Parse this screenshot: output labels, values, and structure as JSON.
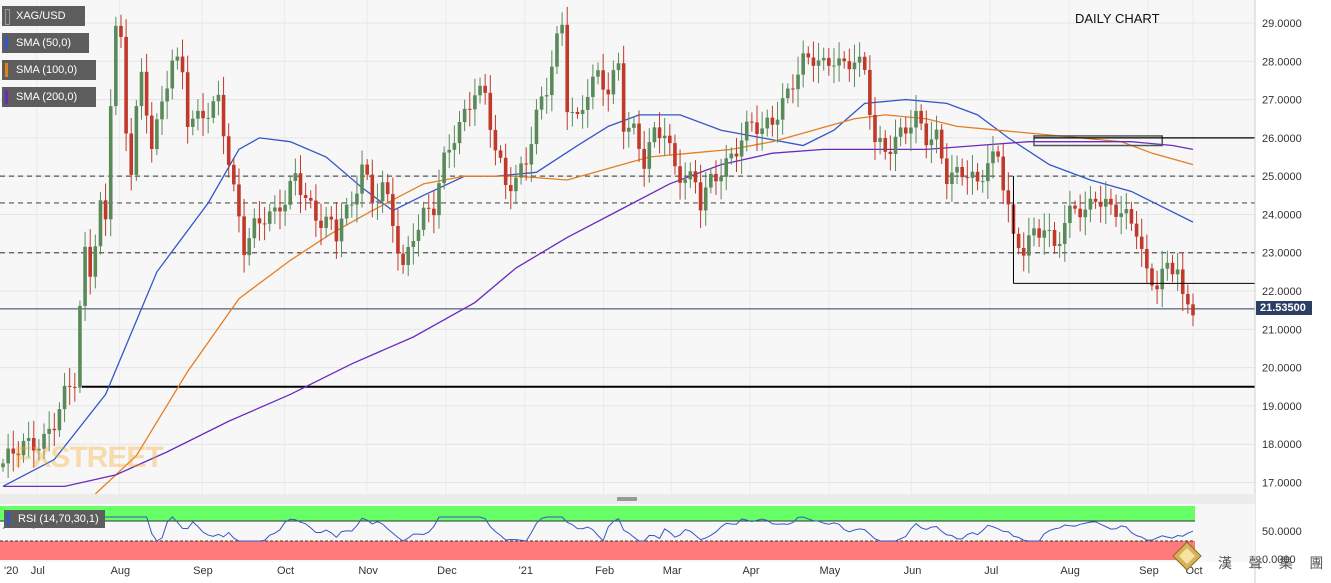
{
  "header": {
    "chart_title": "DAILY CHART",
    "legend": [
      {
        "label": "XAG/USD",
        "color": "#5d5d5d"
      },
      {
        "label": "SMA (50,0)",
        "color": "#3556c7"
      },
      {
        "label": "SMA (100,0)",
        "color": "#e67e22"
      },
      {
        "label": "SMA (200,0)",
        "color": "#6a2bbf"
      }
    ],
    "last_price_label": "21.53500"
  },
  "watermark": "FXSTREET",
  "brand_text": "漢 聲 集 團",
  "rsi": {
    "label": "RSI (14,70,30,1)",
    "overbought_color": "#66ff66",
    "oversold_color": "#ff7b7b",
    "ticks": [
      "50.0000",
      "0.0000"
    ]
  },
  "chart_data": {
    "type": "candlestick",
    "title": "DAILY CHART",
    "symbol": "XAG/USD",
    "ylim": [
      16.7,
      29.6
    ],
    "yticks": [
      17,
      18,
      19,
      20,
      21,
      22,
      23,
      24,
      25,
      26,
      27,
      28,
      29
    ],
    "ytick_labels": [
      "17.0000",
      "18.0000",
      "19.0000",
      "20.0000",
      "21.0000",
      "22.0000",
      "23.0000",
      "24.0000",
      "25.0000",
      "26.0000",
      "27.0000",
      "28.0000",
      "29.0000"
    ],
    "x_axis_labels": [
      "'20",
      "Jul",
      "Aug",
      "Sep",
      "Oct",
      "Nov",
      "Dec",
      "'21",
      "Feb",
      "Mar",
      "Apr",
      "May",
      "Jun",
      "Jul",
      "Aug",
      "Sep",
      "Oct"
    ],
    "close_path": [
      [
        0,
        17.5
      ],
      [
        4,
        17.9
      ],
      [
        8,
        18.2
      ],
      [
        10,
        18.6
      ],
      [
        12,
        19.2
      ],
      [
        14,
        19.6
      ],
      [
        15,
        21.5
      ],
      [
        16,
        23.0
      ],
      [
        17,
        22.6
      ],
      [
        19,
        24.3
      ],
      [
        20,
        23.8
      ],
      [
        21,
        27.0
      ],
      [
        22,
        28.9
      ],
      [
        23,
        28.3
      ],
      [
        24,
        26.0
      ],
      [
        25,
        25.2
      ],
      [
        26,
        26.8
      ],
      [
        27,
        27.6
      ],
      [
        29,
        26.0
      ],
      [
        31,
        26.8
      ],
      [
        33,
        28.0
      ],
      [
        35,
        27.6
      ],
      [
        36,
        26.5
      ],
      [
        38,
        26.6
      ],
      [
        40,
        26.8
      ],
      [
        42,
        26.9
      ],
      [
        45,
        24.5
      ],
      [
        47,
        23.2
      ],
      [
        49,
        23.8
      ],
      [
        51,
        24.0
      ],
      [
        53,
        23.9
      ],
      [
        55,
        24.3
      ],
      [
        57,
        25.0
      ],
      [
        59,
        24.6
      ],
      [
        61,
        23.9
      ],
      [
        63,
        23.8
      ],
      [
        65,
        23.3
      ],
      [
        66,
        24.0
      ],
      [
        68,
        24.2
      ],
      [
        70,
        25.5
      ],
      [
        72,
        24.3
      ],
      [
        74,
        24.7
      ],
      [
        76,
        23.7
      ],
      [
        78,
        22.6
      ],
      [
        80,
        23.6
      ],
      [
        82,
        24.0
      ],
      [
        84,
        24.1
      ],
      [
        86,
        25.3
      ],
      [
        88,
        26.1
      ],
      [
        90,
        26.7
      ],
      [
        92,
        27.3
      ],
      [
        94,
        27.0
      ],
      [
        96,
        25.6
      ],
      [
        98,
        24.8
      ],
      [
        100,
        25.0
      ],
      [
        102,
        25.5
      ],
      [
        104,
        26.5
      ],
      [
        106,
        27.2
      ],
      [
        108,
        28.5
      ],
      [
        109,
        29.0
      ],
      [
        110,
        27.0
      ],
      [
        112,
        26.5
      ],
      [
        114,
        27.2
      ],
      [
        116,
        27.5
      ],
      [
        118,
        27.2
      ],
      [
        120,
        28.0
      ],
      [
        121,
        26.5
      ],
      [
        123,
        26.2
      ],
      [
        125,
        25.3
      ],
      [
        127,
        26.0
      ],
      [
        129,
        26.2
      ],
      [
        131,
        25.3
      ],
      [
        133,
        25.0
      ],
      [
        135,
        24.8
      ],
      [
        136,
        24.2
      ],
      [
        138,
        24.8
      ],
      [
        140,
        25.2
      ],
      [
        142,
        25.6
      ],
      [
        144,
        26.0
      ],
      [
        146,
        26.3
      ],
      [
        148,
        26.1
      ],
      [
        150,
        26.5
      ],
      [
        152,
        27.0
      ],
      [
        154,
        27.5
      ],
      [
        156,
        27.9
      ],
      [
        158,
        28.0
      ],
      [
        160,
        27.9
      ],
      [
        162,
        28.2
      ],
      [
        164,
        27.9
      ],
      [
        166,
        28.0
      ],
      [
        168,
        27.6
      ],
      [
        170,
        25.9
      ],
      [
        172,
        25.8
      ],
      [
        174,
        26.0
      ],
      [
        176,
        26.2
      ],
      [
        178,
        26.4
      ],
      [
        180,
        26.0
      ],
      [
        182,
        26.1
      ],
      [
        184,
        25.1
      ],
      [
        186,
        25.0
      ],
      [
        188,
        25.0
      ],
      [
        190,
        24.7
      ],
      [
        192,
        25.5
      ],
      [
        194,
        25.6
      ],
      [
        196,
        24.2
      ],
      [
        197,
        23.2
      ],
      [
        199,
        23.0
      ],
      [
        201,
        23.5
      ],
      [
        203,
        23.8
      ],
      [
        205,
        23.2
      ],
      [
        207,
        23.7
      ],
      [
        209,
        24.1
      ],
      [
        211,
        24.0
      ],
      [
        213,
        24.6
      ],
      [
        215,
        24.3
      ],
      [
        217,
        24.1
      ],
      [
        219,
        23.8
      ],
      [
        221,
        23.6
      ],
      [
        223,
        22.5
      ],
      [
        225,
        22.3
      ],
      [
        227,
        22.6
      ],
      [
        229,
        22.5
      ],
      [
        230,
        21.6
      ]
    ],
    "series": [
      {
        "name": "SMA (50,0)",
        "color": "#3556c7",
        "values": [
          [
            0,
            16.9
          ],
          [
            10,
            17.6
          ],
          [
            20,
            19.3
          ],
          [
            30,
            22.5
          ],
          [
            40,
            24.3
          ],
          [
            46,
            25.7
          ],
          [
            50,
            26.0
          ],
          [
            56,
            25.9
          ],
          [
            63,
            25.5
          ],
          [
            70,
            24.7
          ],
          [
            76,
            24.1
          ],
          [
            82,
            24.5
          ],
          [
            90,
            25.0
          ],
          [
            96,
            25.0
          ],
          [
            104,
            25.1
          ],
          [
            112,
            25.8
          ],
          [
            118,
            26.3
          ],
          [
            124,
            26.6
          ],
          [
            132,
            26.6
          ],
          [
            140,
            26.2
          ],
          [
            148,
            26.0
          ],
          [
            156,
            25.8
          ],
          [
            162,
            26.2
          ],
          [
            168,
            26.9
          ],
          [
            176,
            27.0
          ],
          [
            184,
            26.9
          ],
          [
            190,
            26.6
          ],
          [
            196,
            26.0
          ],
          [
            204,
            25.3
          ],
          [
            212,
            24.9
          ],
          [
            220,
            24.6
          ],
          [
            226,
            24.2
          ],
          [
            232,
            23.8
          ]
        ]
      },
      {
        "name": "SMA (100,0)",
        "color": "#e67e22",
        "values": [
          [
            18,
            16.7
          ],
          [
            26,
            17.7
          ],
          [
            36,
            19.9
          ],
          [
            46,
            21.8
          ],
          [
            56,
            22.8
          ],
          [
            64,
            23.5
          ],
          [
            72,
            24.1
          ],
          [
            82,
            24.8
          ],
          [
            90,
            25.0
          ],
          [
            100,
            25.0
          ],
          [
            110,
            24.9
          ],
          [
            118,
            25.2
          ],
          [
            126,
            25.5
          ],
          [
            134,
            25.6
          ],
          [
            142,
            25.7
          ],
          [
            150,
            25.9
          ],
          [
            158,
            26.2
          ],
          [
            166,
            26.5
          ],
          [
            172,
            26.6
          ],
          [
            180,
            26.5
          ],
          [
            186,
            26.3
          ],
          [
            194,
            26.2
          ],
          [
            202,
            26.1
          ],
          [
            210,
            26.0
          ],
          [
            218,
            25.9
          ],
          [
            224,
            25.6
          ],
          [
            232,
            25.3
          ]
        ]
      },
      {
        "name": "SMA (200,0)",
        "color": "#6a2bbf",
        "values": [
          [
            0,
            16.9
          ],
          [
            12,
            16.9
          ],
          [
            22,
            17.2
          ],
          [
            32,
            17.8
          ],
          [
            44,
            18.6
          ],
          [
            56,
            19.3
          ],
          [
            68,
            20.1
          ],
          [
            80,
            20.8
          ],
          [
            92,
            21.7
          ],
          [
            100,
            22.6
          ],
          [
            110,
            23.4
          ],
          [
            120,
            24.1
          ],
          [
            130,
            24.8
          ],
          [
            140,
            25.3
          ],
          [
            150,
            25.6
          ],
          [
            160,
            25.7
          ],
          [
            170,
            25.7
          ],
          [
            180,
            25.7
          ],
          [
            190,
            25.8
          ],
          [
            200,
            25.9
          ],
          [
            210,
            25.9
          ],
          [
            220,
            25.9
          ],
          [
            228,
            25.8
          ],
          [
            232,
            25.7
          ]
        ]
      }
    ],
    "horizontal_levels": [
      {
        "value": 25.0,
        "style": "dashed"
      },
      {
        "value": 24.3,
        "style": "dashed"
      },
      {
        "value": 23.0,
        "style": "dashed"
      },
      {
        "value": 19.5,
        "style": "solid-bold"
      },
      {
        "value": 21.535,
        "style": "solid-price"
      }
    ],
    "annotations": {
      "support_box": {
        "x_from": 201,
        "x_to": 226,
        "y_from": 25.8,
        "y_to": 26.05
      },
      "resistance_line_26": {
        "value": 26.0,
        "x_from": 201,
        "x_to": 232
      },
      "support_line_22_2": {
        "value": 22.2,
        "x_from": 197,
        "x_to": 232
      },
      "support_line_22_2_drop": {
        "x": 197,
        "y_from": 25.0,
        "y_to": 22.2
      }
    },
    "grid": true
  }
}
